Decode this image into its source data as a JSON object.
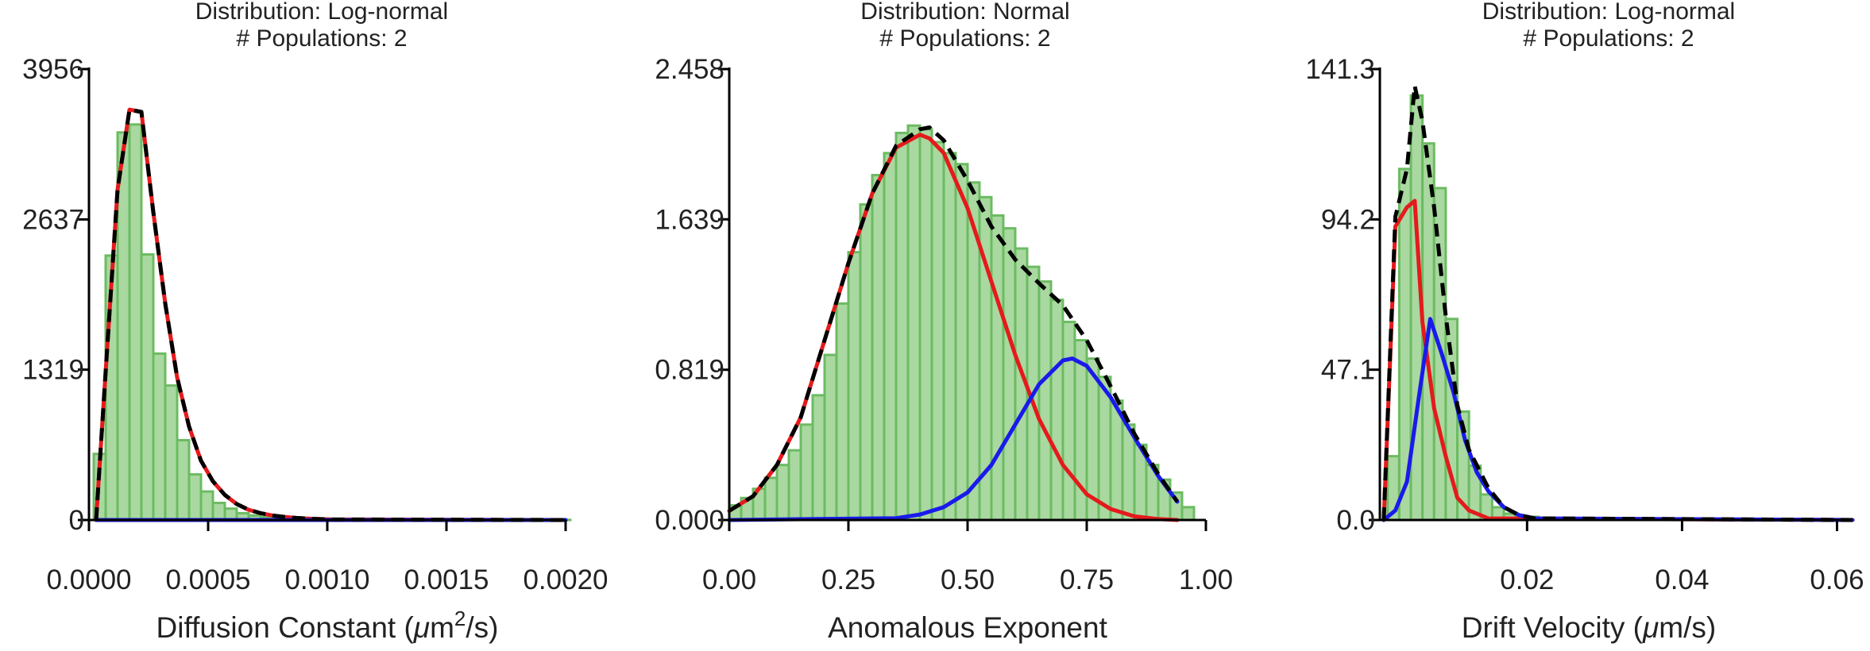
{
  "chart_data": [
    {
      "type": "bar",
      "title": [
        "Distribution: Log-normal",
        "# Populations: 2"
      ],
      "xlabel": [
        "Diffusion Constant (",
        "μ",
        "m",
        "2",
        "/s)"
      ],
      "ylabel": "",
      "xlim": [
        0.0,
        0.002
      ],
      "ylim": [
        0,
        3956
      ],
      "xticks": [
        0.0,
        0.0005,
        0.001,
        0.0015,
        0.002
      ],
      "xtick_labels": [
        "0.0000",
        "0.0005",
        "0.0010",
        "0.0015",
        "0.0020"
      ],
      "yticks": [
        0,
        1319,
        2637,
        3956
      ],
      "ytick_labels": [
        "0",
        "1319",
        "2637",
        "3956"
      ],
      "histogram": {
        "bin_width": 5e-05,
        "bin_starts": [
          2e-05,
          7e-05,
          0.00012,
          0.00017,
          0.00022,
          0.00027,
          0.00032,
          0.00037,
          0.00042,
          0.00047,
          0.00052,
          0.00057,
          0.00062,
          0.00067,
          0.00072,
          0.00077,
          0.00082,
          0.00087,
          0.00092,
          0.00097,
          0.00102,
          0.00107,
          0.00112,
          0.00117,
          0.00122,
          0.00127,
          0.00132,
          0.00137,
          0.00142,
          0.00147,
          0.00152,
          0.00157,
          0.00162,
          0.00167,
          0.00172,
          0.00177,
          0.00182,
          0.00187,
          0.00192,
          0.00197
        ],
        "counts": [
          580,
          2320,
          3400,
          3470,
          2330,
          1460,
          1180,
          700,
          400,
          250,
          150,
          100,
          60,
          40,
          25,
          15,
          12,
          10,
          8,
          6,
          5,
          4,
          4,
          3,
          3,
          2,
          2,
          2,
          2,
          2,
          2,
          1,
          1,
          1,
          1,
          1,
          1,
          1,
          1,
          1
        ]
      },
      "series": [
        {
          "name": "",
          "color": "#e41a1c",
          "style": "solid",
          "x": [
            3e-05,
            7e-05,
            0.00012,
            0.00017,
            0.00022,
            0.00027,
            0.00032,
            0.00037,
            0.00042,
            0.00047,
            0.00052,
            0.00057,
            0.00062,
            0.00067,
            0.00072,
            0.00077,
            0.00082,
            0.00087,
            0.00092,
            0.00097,
            0.00102,
            0.002
          ],
          "y": [
            0,
            1300,
            2900,
            3600,
            3580,
            2700,
            1900,
            1250,
            820,
            520,
            340,
            220,
            140,
            90,
            60,
            40,
            27,
            18,
            12,
            8,
            5,
            0
          ]
        },
        {
          "name": "",
          "color": "#1a1aeb",
          "style": "solid",
          "x": [
            3e-05,
            0.002
          ],
          "y": [
            0,
            0
          ]
        },
        {
          "name": "",
          "color": "#000000",
          "style": "dashed",
          "x": [
            3e-05,
            7e-05,
            0.00012,
            0.00017,
            0.00022,
            0.00027,
            0.00032,
            0.00037,
            0.00042,
            0.00047,
            0.00052,
            0.00057,
            0.00062,
            0.00067,
            0.00072,
            0.00077,
            0.00082,
            0.00087,
            0.00092,
            0.00097,
            0.00102,
            0.002
          ],
          "y": [
            0,
            1300,
            2900,
            3600,
            3580,
            2700,
            1900,
            1250,
            820,
            520,
            340,
            220,
            140,
            90,
            60,
            40,
            27,
            18,
            12,
            8,
            5,
            0
          ]
        }
      ],
      "grid": false,
      "legend": "none"
    },
    {
      "type": "bar",
      "title": [
        "Distribution: Normal",
        "# Populations: 2"
      ],
      "xlabel": [
        "Anomalous Exponent"
      ],
      "ylabel": "",
      "xlim": [
        0.0,
        1.0
      ],
      "ylim": [
        0,
        2.458
      ],
      "xticks": [
        0.0,
        0.25,
        0.5,
        0.75,
        1.0
      ],
      "xtick_labels": [
        "0.00",
        "0.25",
        "0.50",
        "0.75",
        "1.00"
      ],
      "yticks": [
        0,
        0.819,
        1.639,
        2.458
      ],
      "ytick_labels": [
        "0.000",
        "0.819",
        "1.639",
        "2.458"
      ],
      "histogram": {
        "bin_width": 0.025,
        "bin_starts": [
          0.0,
          0.025,
          0.05,
          0.075,
          0.1,
          0.125,
          0.15,
          0.175,
          0.2,
          0.225,
          0.25,
          0.275,
          0.3,
          0.325,
          0.35,
          0.375,
          0.4,
          0.425,
          0.45,
          0.475,
          0.5,
          0.525,
          0.55,
          0.575,
          0.6,
          0.625,
          0.65,
          0.675,
          0.7,
          0.725,
          0.75,
          0.775,
          0.8,
          0.825,
          0.85,
          0.875,
          0.9,
          0.925,
          0.95
        ],
        "counts": [
          0.08,
          0.12,
          0.17,
          0.23,
          0.3,
          0.38,
          0.52,
          0.68,
          0.9,
          1.18,
          1.46,
          1.72,
          1.88,
          2.0,
          2.11,
          2.15,
          2.13,
          2.06,
          2.0,
          1.94,
          1.84,
          1.76,
          1.66,
          1.59,
          1.48,
          1.38,
          1.3,
          1.2,
          1.08,
          0.98,
          0.88,
          0.78,
          0.65,
          0.52,
          0.41,
          0.3,
          0.22,
          0.15,
          0.07
        ]
      },
      "series": [
        {
          "name": "",
          "color": "#e41a1c",
          "style": "solid",
          "x": [
            0.0,
            0.05,
            0.1,
            0.15,
            0.2,
            0.25,
            0.3,
            0.35,
            0.4,
            0.42,
            0.45,
            0.5,
            0.55,
            0.6,
            0.65,
            0.7,
            0.75,
            0.8,
            0.85,
            0.9,
            0.94
          ],
          "y": [
            0.05,
            0.13,
            0.3,
            0.56,
            0.98,
            1.4,
            1.78,
            2.03,
            2.1,
            2.08,
            2.0,
            1.7,
            1.3,
            0.9,
            0.55,
            0.3,
            0.14,
            0.06,
            0.02,
            0.005,
            0.0
          ]
        },
        {
          "name": "",
          "color": "#1a1aeb",
          "style": "solid",
          "x": [
            0.0,
            0.35,
            0.4,
            0.45,
            0.5,
            0.55,
            0.6,
            0.65,
            0.7,
            0.72,
            0.75,
            0.8,
            0.85,
            0.9,
            0.94
          ],
          "y": [
            0.0,
            0.01,
            0.03,
            0.07,
            0.15,
            0.3,
            0.52,
            0.74,
            0.87,
            0.88,
            0.84,
            0.67,
            0.45,
            0.24,
            0.1
          ]
        },
        {
          "name": "",
          "color": "#000000",
          "style": "dashed",
          "x": [
            0.0,
            0.05,
            0.1,
            0.15,
            0.2,
            0.25,
            0.3,
            0.35,
            0.4,
            0.42,
            0.45,
            0.5,
            0.55,
            0.6,
            0.65,
            0.7,
            0.75,
            0.8,
            0.85,
            0.9,
            0.94
          ],
          "y": [
            0.05,
            0.13,
            0.3,
            0.56,
            0.98,
            1.4,
            1.78,
            2.04,
            2.13,
            2.14,
            2.07,
            1.85,
            1.6,
            1.42,
            1.29,
            1.17,
            0.98,
            0.73,
            0.47,
            0.25,
            0.1
          ]
        }
      ],
      "grid": false,
      "legend": "none"
    },
    {
      "type": "bar",
      "title": [
        "Distribution: Log-normal",
        "# Populations: 2"
      ],
      "xlabel": [
        "Drift Velocity (",
        "μ",
        "m/s)"
      ],
      "ylabel": "",
      "xlim": [
        0.001,
        0.062
      ],
      "ylim": [
        0,
        141.3
      ],
      "xticks": [
        0.02,
        0.04,
        0.06
      ],
      "xtick_labels": [
        "0.02",
        "0.04",
        "0.06"
      ],
      "yticks": [
        0,
        47.1,
        94.2,
        141.3
      ],
      "ytick_labels": [
        "0.0",
        "47.1",
        "94.2",
        "141.3"
      ],
      "histogram": {
        "bin_width": 0.0015,
        "bin_starts": [
          0.002,
          0.0035,
          0.005,
          0.0065,
          0.008,
          0.0095,
          0.011,
          0.0125,
          0.014,
          0.0155,
          0.017,
          0.0185,
          0.02,
          0.0215,
          0.023,
          0.0245,
          0.026,
          0.0275,
          0.029,
          0.0305
        ],
        "counts": [
          20,
          110,
          133,
          118,
          104,
          63,
          34,
          17,
          8,
          4,
          2,
          1,
          1,
          0.5,
          0.3,
          0.2,
          0.1,
          0.1,
          0.1,
          0.1
        ]
      },
      "series": [
        {
          "name": "",
          "color": "#e41a1c",
          "style": "solid",
          "x": [
            0.0015,
            0.003,
            0.0045,
            0.0055,
            0.0065,
            0.008,
            0.0095,
            0.011,
            0.0125,
            0.015,
            0.062
          ],
          "y": [
            0,
            92,
            98,
            100,
            62,
            35,
            20,
            7,
            3,
            0.5,
            0
          ]
        },
        {
          "name": "",
          "color": "#1a1aeb",
          "style": "solid",
          "x": [
            0.0015,
            0.003,
            0.0045,
            0.006,
            0.0075,
            0.009,
            0.0105,
            0.012,
            0.0135,
            0.015,
            0.017,
            0.019,
            0.021,
            0.062
          ],
          "y": [
            0,
            3,
            12,
            38,
            63,
            52,
            40,
            25,
            15,
            9,
            4,
            1.5,
            0.5,
            0
          ]
        },
        {
          "name": "",
          "color": "#000000",
          "style": "dashed",
          "x": [
            0.0015,
            0.003,
            0.0045,
            0.0055,
            0.0065,
            0.008,
            0.0095,
            0.011,
            0.0125,
            0.015,
            0.017,
            0.019,
            0.021,
            0.062
          ],
          "y": [
            0,
            95,
            110,
            136,
            125,
            98,
            64,
            36,
            22,
            10,
            4,
            1.5,
            0.5,
            0
          ]
        }
      ],
      "grid": false,
      "legend": "none"
    }
  ]
}
